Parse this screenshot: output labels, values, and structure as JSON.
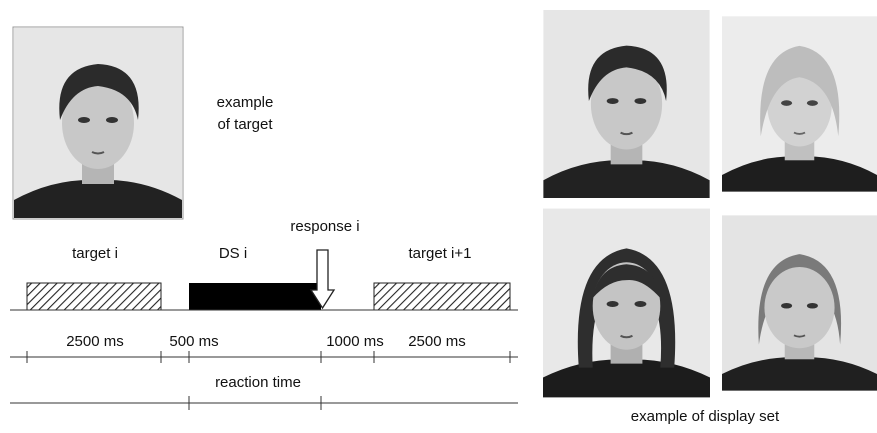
{
  "target_caption": [
    "example",
    "of target"
  ],
  "timeline": {
    "phases": [
      "target i",
      "DS i",
      "target i+1"
    ],
    "response": "response i",
    "durations": [
      "2500 ms",
      "500 ms",
      "1000 ms",
      "2500 ms"
    ],
    "reaction": "reaction time"
  },
  "display_caption": "example of display set"
}
